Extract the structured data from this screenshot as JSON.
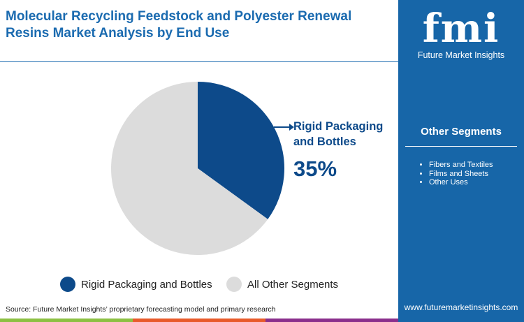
{
  "title": "Molecular Recycling Feedstock and Polyester Renewal Resins Market Analysis by End Use",
  "logo": {
    "mark": "fmi",
    "name": "Future Market Insights"
  },
  "side": {
    "heading": "Other Segments",
    "items": [
      "Fibers and Textiles",
      "Films and Sheets",
      "Other Uses"
    ],
    "url": "www.futuremarketinsights.com"
  },
  "source": "Source: Future Market Insights’ proprietary forecasting model and primary research",
  "chart_data": {
    "type": "pie",
    "labels": [
      "Rigid Packaging and Bottles",
      "All Other Segments"
    ],
    "values": [
      35,
      65
    ],
    "colors": [
      "#0d4a8a",
      "#dcdcdc"
    ],
    "callout": {
      "label": "Rigid Packaging and Bottles",
      "value": "35%"
    },
    "legend": "bottom"
  },
  "colors": {
    "brand": "#1766a8",
    "bar": [
      "#8cc043",
      "#e85a2b",
      "#8a2f8c"
    ]
  }
}
